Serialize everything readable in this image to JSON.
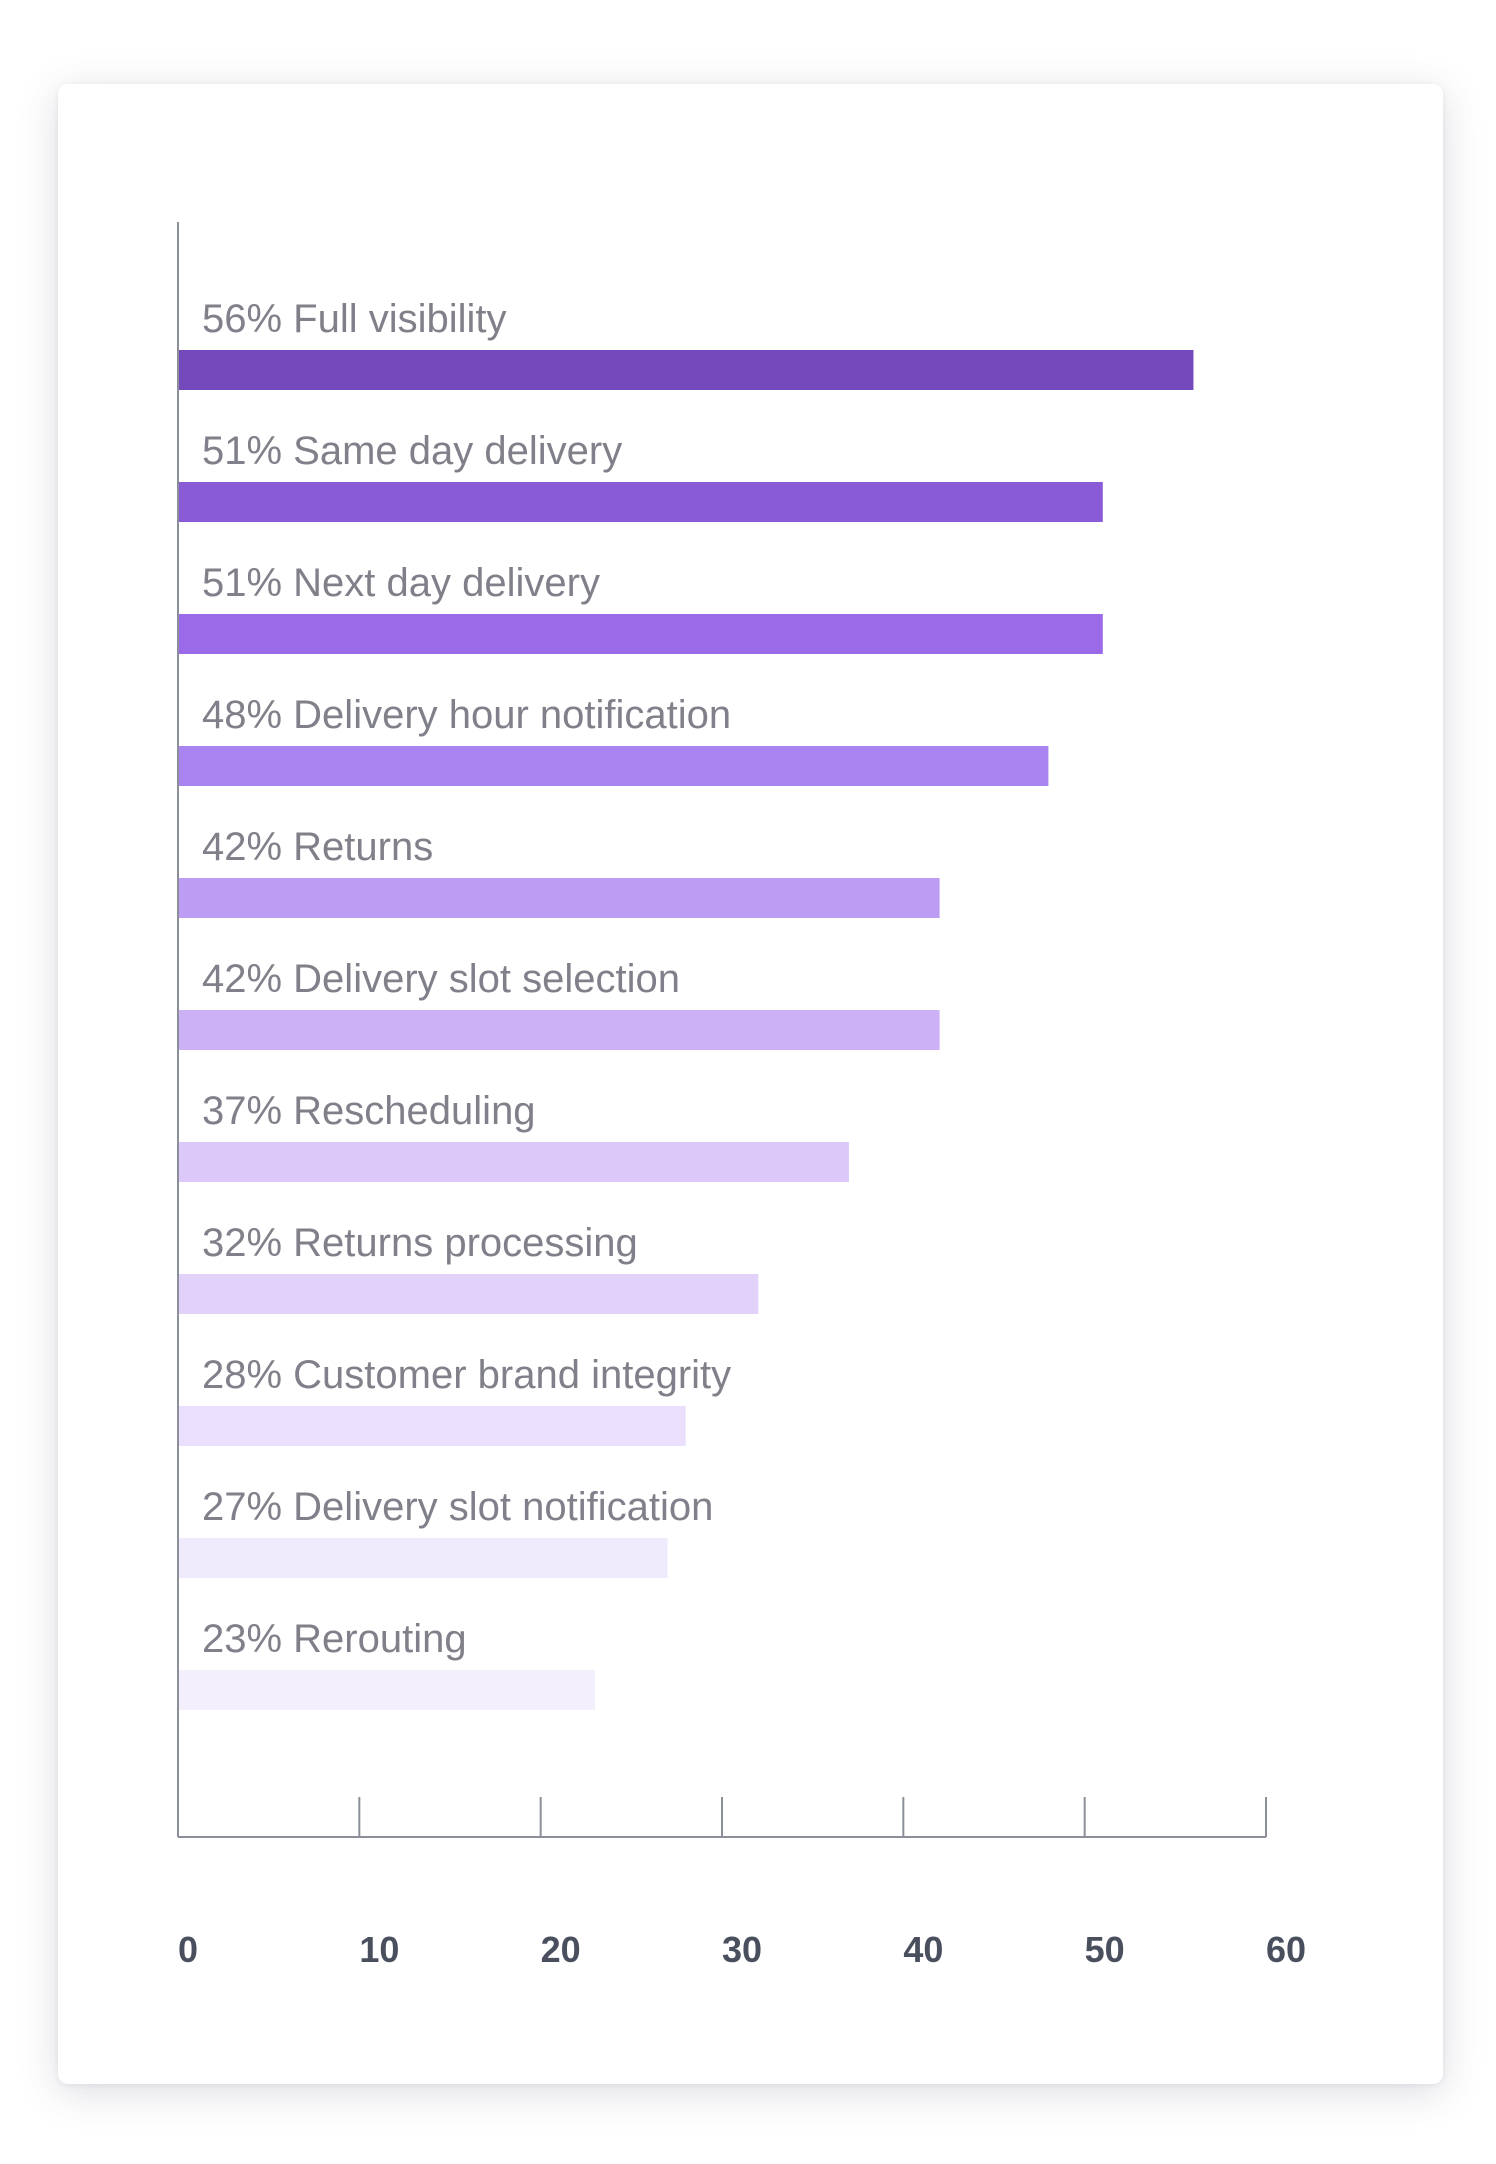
{
  "chart_data": {
    "type": "bar",
    "orientation": "horizontal",
    "title": "",
    "xlabel": "",
    "ylabel": "",
    "xlim": [
      0,
      60
    ],
    "x_ticks": [
      0,
      10,
      20,
      30,
      40,
      50,
      60
    ],
    "grid": false,
    "legend": "none",
    "categories": [
      "56% Full visibility",
      "51% Same day delivery",
      "51% Next day delivery",
      "48% Delivery hour notification",
      "42% Returns",
      "42% Delivery slot selection",
      "37% Rescheduling",
      "32% Returns processing",
      "28% Customer brand integrity",
      "27% Delivery slot notification",
      "23% Rerouting"
    ],
    "values": [
      56,
      51,
      51,
      48,
      42,
      42,
      37,
      32,
      28,
      27,
      23
    ],
    "colors": [
      "#7349bb",
      "#8a5bd7",
      "#9b6ae8",
      "#a983f0",
      "#bd9cf3",
      "#cdb1f7",
      "#dcc9fa",
      "#e2d2fa",
      "#eadffc",
      "#f0eafd",
      "#f3effd"
    ]
  }
}
